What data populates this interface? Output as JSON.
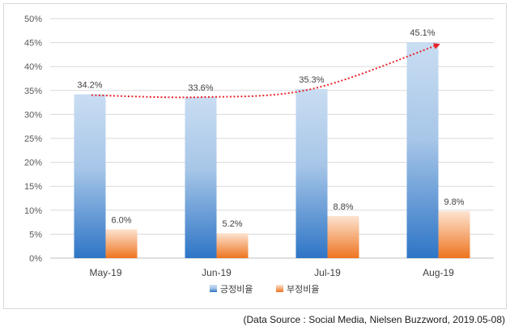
{
  "chart_data": {
    "type": "bar",
    "categories": [
      "May-19",
      "Jun-19",
      "Jul-19",
      "Aug-19"
    ],
    "series": [
      {
        "name": "긍정비율",
        "values": [
          34.2,
          33.6,
          35.3,
          45.1
        ],
        "labels": [
          "34.2%",
          "33.6%",
          "35.3%",
          "45.1%"
        ],
        "color_top": "#c9ddf2",
        "color_bottom": "#2e75c6"
      },
      {
        "name": "부정비율",
        "values": [
          6.0,
          5.2,
          8.8,
          9.8
        ],
        "labels": [
          "6.0%",
          "5.2%",
          "8.8%",
          "9.8%"
        ],
        "color_top": "#fde3d0",
        "color_bottom": "#ee7420"
      }
    ],
    "ylim": [
      0,
      50
    ],
    "yticks": [
      0,
      5,
      10,
      15,
      20,
      25,
      30,
      35,
      40,
      45,
      50
    ],
    "ytick_labels": [
      "0%",
      "5%",
      "10%",
      "15%",
      "20%",
      "25%",
      "30%",
      "35%",
      "40%",
      "45%",
      "50%"
    ],
    "grid": true,
    "legend_position": "bottom",
    "trendline": {
      "series": "긍정비율",
      "style": "dotted",
      "color": "#e8242a",
      "arrow": true
    }
  },
  "source_note": "(Data Source : Social Media, Nielsen  Buzzword, 2019.05-08)"
}
